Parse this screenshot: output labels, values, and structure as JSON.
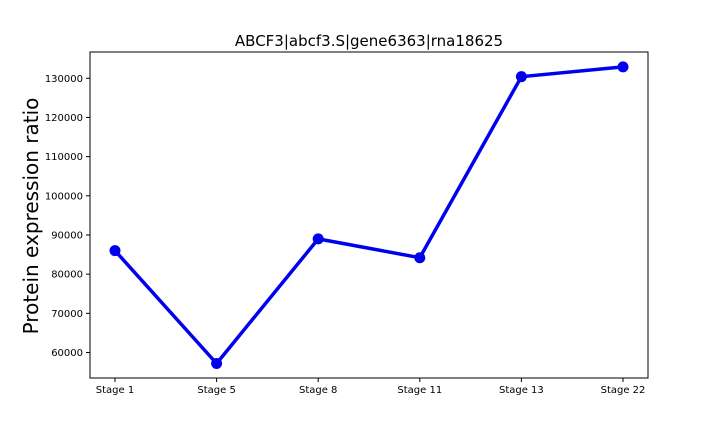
{
  "chart_data": {
    "type": "line",
    "title": "ABCF3|abcf3.S|gene6363|rna18625",
    "xlabel": "",
    "ylabel": "Protein expression ratio",
    "categories": [
      "Stage 1",
      "Stage 5",
      "Stage 8",
      "Stage 11",
      "Stage 13",
      "Stage 22"
    ],
    "series": [
      {
        "values": [
          86000,
          57200,
          89000,
          84200,
          130400,
          132900
        ]
      }
    ],
    "ylim": [
      53500,
      136700
    ],
    "yticks": [
      60000,
      70000,
      80000,
      90000,
      100000,
      110000,
      120000,
      130000
    ],
    "yticklabels": [
      "60000",
      "70000",
      "80000",
      "90000",
      "100000",
      "110000",
      "120000",
      "130000"
    ],
    "grid": false,
    "legend": "none",
    "colors": {
      "line": "#0000ee",
      "marker": "#0000ee",
      "axes": "#000000"
    }
  }
}
